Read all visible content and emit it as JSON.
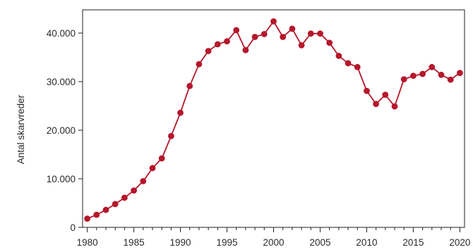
{
  "chart_data": {
    "type": "line",
    "title": "",
    "xlabel": "",
    "ylabel": "Antal skarvreder",
    "xlim": [
      1979.5,
      2020.5
    ],
    "ylim": [
      0,
      40000
    ],
    "yticks": [
      0,
      10000,
      20000,
      30000,
      40000
    ],
    "ytick_labels": [
      "0",
      "10.000",
      "20.000",
      "30.000",
      "40.000"
    ],
    "xticks": [
      1980,
      1985,
      1990,
      1995,
      2000,
      2005,
      2010,
      2015,
      2020
    ],
    "xtick_labels": [
      "1980",
      "1985",
      "1990",
      "1995",
      "2000",
      "2005",
      "2010",
      "2015",
      "2020"
    ],
    "grid": false,
    "legend": false,
    "color": "#b5172b",
    "series": [
      {
        "x": [
          1980,
          1981,
          1982,
          1983,
          1984,
          1985,
          1986,
          1987,
          1988,
          1989,
          1990,
          1991,
          1992,
          1993,
          1994,
          1995,
          1996,
          1997,
          1998,
          1999,
          2000,
          2001,
          2002,
          2003,
          2004,
          2005,
          2006,
          2007,
          2008,
          2009,
          2010,
          2011,
          2012,
          2013,
          2014,
          2015,
          2016,
          2017,
          2018,
          2019,
          2020
        ],
        "y": [
          1800,
          2600,
          3600,
          4800,
          6100,
          7600,
          9500,
          12200,
          14200,
          18800,
          23600,
          29100,
          33600,
          36300,
          37700,
          38300,
          40600,
          36500,
          39200,
          39800,
          42400,
          39200,
          40900,
          37500,
          39900,
          39900,
          38000,
          35300,
          33800,
          33000,
          28100,
          25400,
          27300,
          24900,
          30500,
          31200,
          31600,
          33000,
          31400,
          30400,
          31800
        ]
      }
    ]
  }
}
